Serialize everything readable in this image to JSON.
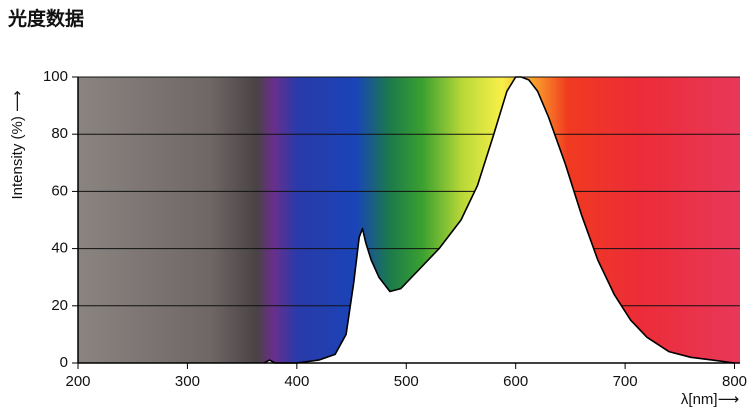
{
  "chart_data": {
    "type": "line",
    "title": "光度数据",
    "x_label": "λ[nm]⟶",
    "y_label": "Intensity (%) ⟶",
    "x": [
      370,
      375,
      380,
      400,
      420,
      435,
      445,
      452,
      457,
      460,
      463,
      468,
      475,
      485,
      495,
      510,
      530,
      550,
      565,
      580,
      592,
      600,
      605,
      612,
      620,
      630,
      645,
      660,
      675,
      690,
      705,
      720,
      740,
      760,
      780,
      800
    ],
    "values": [
      0,
      1,
      0,
      0,
      1,
      3,
      10,
      28,
      44,
      47,
      42,
      36,
      30,
      25,
      26,
      32,
      40,
      50,
      62,
      80,
      95,
      100,
      100,
      99,
      95,
      86,
      70,
      52,
      36,
      24,
      15,
      9,
      4,
      2,
      1,
      0
    ],
    "color": "#000000",
    "xlim": [
      200,
      805
    ],
    "ylim": [
      0,
      100
    ],
    "xticks": [
      200,
      300,
      400,
      500,
      600,
      700,
      800
    ],
    "yticks": [
      0,
      20,
      40,
      60,
      80,
      100
    ],
    "grid": true
  }
}
